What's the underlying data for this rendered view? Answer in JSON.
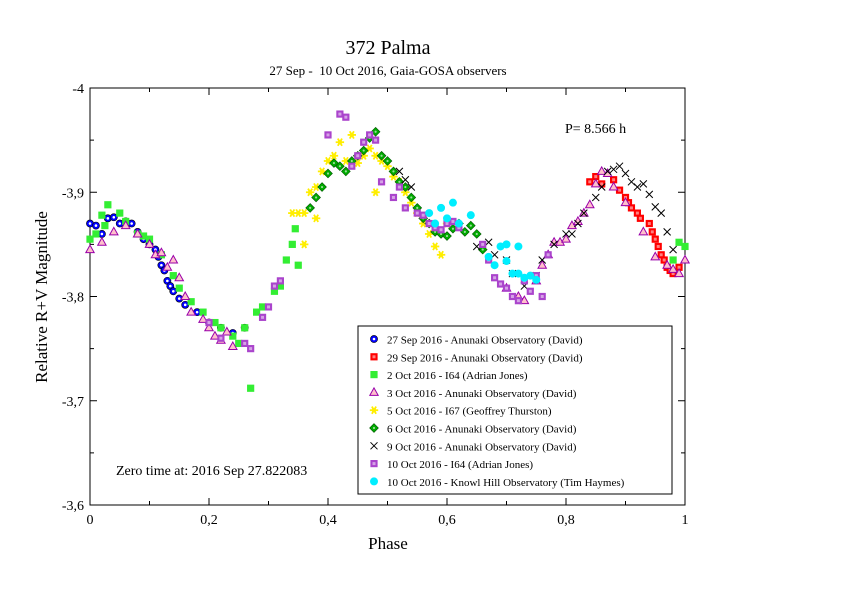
{
  "chart_data": {
    "type": "scatter",
    "title": "372 Palma",
    "subtitle": "27 Sep -  10 Oct 2016, Gaia-GOSA observers",
    "xlabel": "Phase",
    "ylabel": "Relative R+V Magnitude",
    "xlim": [
      0,
      1
    ],
    "ylim": [
      -3.6,
      -4.0
    ],
    "y_inverted": true,
    "x_ticks": [
      0,
      0.2,
      0.4,
      0.6,
      0.8,
      1
    ],
    "x_tick_labels": [
      "0",
      "0,2",
      "0,4",
      "0,6",
      "0,8",
      "1"
    ],
    "y_ticks": [
      -4.0,
      -3.9,
      -3.8,
      -3.7,
      -3.6
    ],
    "y_tick_labels": [
      "-4",
      "-3,9",
      "-3,8",
      "-3,7",
      "-3,6"
    ],
    "grid": false,
    "legend_position": "bottom-right",
    "annotations": {
      "period": "P= 8.566 h",
      "zero_time": "Zero time at: 2016 Sep 27.822083"
    },
    "series": [
      {
        "name": "27 Sep 2016 - Anunaki Observatory (David)",
        "marker": "circle-dot",
        "color": "#0000ff",
        "points": [
          [
            0.0,
            -3.87
          ],
          [
            0.01,
            -3.868
          ],
          [
            0.02,
            -3.86
          ],
          [
            0.03,
            -3.875
          ],
          [
            0.04,
            -3.876
          ],
          [
            0.05,
            -3.87
          ],
          [
            0.06,
            -3.872
          ],
          [
            0.07,
            -3.87
          ],
          [
            0.08,
            -3.862
          ],
          [
            0.09,
            -3.855
          ],
          [
            0.1,
            -3.85
          ],
          [
            0.11,
            -3.845
          ],
          [
            0.115,
            -3.838
          ],
          [
            0.12,
            -3.83
          ],
          [
            0.125,
            -3.825
          ],
          [
            0.13,
            -3.815
          ],
          [
            0.135,
            -3.81
          ],
          [
            0.14,
            -3.805
          ],
          [
            0.15,
            -3.798
          ],
          [
            0.16,
            -3.792
          ],
          [
            0.18,
            -3.785
          ],
          [
            0.2,
            -3.775
          ],
          [
            0.22,
            -3.77
          ],
          [
            0.24,
            -3.765
          ],
          [
            0.26,
            -3.77
          ]
        ]
      },
      {
        "name": "29 Sep 2016 - Anunaki Observatory (David)",
        "marker": "square-dot",
        "color": "#ff0000",
        "points": [
          [
            0.84,
            -3.91
          ],
          [
            0.85,
            -3.915
          ],
          [
            0.86,
            -3.908
          ],
          [
            0.88,
            -3.912
          ],
          [
            0.89,
            -3.902
          ],
          [
            0.9,
            -3.895
          ],
          [
            0.905,
            -3.89
          ],
          [
            0.91,
            -3.885
          ],
          [
            0.92,
            -3.88
          ],
          [
            0.925,
            -3.875
          ],
          [
            0.94,
            -3.87
          ],
          [
            0.945,
            -3.862
          ],
          [
            0.95,
            -3.855
          ],
          [
            0.955,
            -3.848
          ],
          [
            0.96,
            -3.84
          ],
          [
            0.965,
            -3.835
          ],
          [
            0.97,
            -3.828
          ],
          [
            0.975,
            -3.825
          ],
          [
            0.98,
            -3.822
          ],
          [
            0.99,
            -3.828
          ]
        ]
      },
      {
        "name": "2 Oct 2016 - I64 (Adrian Jones)",
        "marker": "square",
        "color": "#33ee33",
        "points": [
          [
            0.0,
            -3.855
          ],
          [
            0.01,
            -3.86
          ],
          [
            0.02,
            -3.878
          ],
          [
            0.025,
            -3.868
          ],
          [
            0.03,
            -3.888
          ],
          [
            0.05,
            -3.88
          ],
          [
            0.06,
            -3.872
          ],
          [
            0.08,
            -3.86
          ],
          [
            0.09,
            -3.858
          ],
          [
            0.1,
            -3.855
          ],
          [
            0.12,
            -3.84
          ],
          [
            0.14,
            -3.82
          ],
          [
            0.15,
            -3.808
          ],
          [
            0.17,
            -3.795
          ],
          [
            0.19,
            -3.785
          ],
          [
            0.21,
            -3.775
          ],
          [
            0.22,
            -3.77
          ],
          [
            0.24,
            -3.762
          ],
          [
            0.25,
            -3.755
          ],
          [
            0.26,
            -3.77
          ],
          [
            0.27,
            -3.712
          ],
          [
            0.28,
            -3.785
          ],
          [
            0.29,
            -3.79
          ],
          [
            0.31,
            -3.805
          ],
          [
            0.32,
            -3.81
          ],
          [
            0.33,
            -3.835
          ],
          [
            0.34,
            -3.85
          ],
          [
            0.345,
            -3.865
          ],
          [
            0.35,
            -3.83
          ],
          [
            0.98,
            -3.835
          ],
          [
            0.99,
            -3.852
          ],
          [
            1.0,
            -3.848
          ]
        ]
      },
      {
        "name": "3 Oct 2016 - Anunaki Observatory (David)",
        "marker": "triangle",
        "color": "#9900aa",
        "points": [
          [
            0.0,
            -3.845
          ],
          [
            0.02,
            -3.852
          ],
          [
            0.04,
            -3.862
          ],
          [
            0.06,
            -3.868
          ],
          [
            0.08,
            -3.86
          ],
          [
            0.1,
            -3.85
          ],
          [
            0.11,
            -3.84
          ],
          [
            0.12,
            -3.842
          ],
          [
            0.13,
            -3.828
          ],
          [
            0.14,
            -3.835
          ],
          [
            0.15,
            -3.818
          ],
          [
            0.16,
            -3.8
          ],
          [
            0.17,
            -3.785
          ],
          [
            0.19,
            -3.778
          ],
          [
            0.2,
            -3.77
          ],
          [
            0.21,
            -3.762
          ],
          [
            0.22,
            -3.758
          ],
          [
            0.23,
            -3.766
          ],
          [
            0.24,
            -3.752
          ],
          [
            0.7,
            -3.808
          ],
          [
            0.72,
            -3.8
          ],
          [
            0.73,
            -3.796
          ],
          [
            0.75,
            -3.815
          ],
          [
            0.76,
            -3.83
          ],
          [
            0.77,
            -3.84
          ],
          [
            0.78,
            -3.852
          ],
          [
            0.79,
            -3.852
          ],
          [
            0.8,
            -3.855
          ],
          [
            0.81,
            -3.868
          ],
          [
            0.82,
            -3.872
          ],
          [
            0.83,
            -3.88
          ],
          [
            0.84,
            -3.888
          ],
          [
            0.85,
            -3.908
          ],
          [
            0.86,
            -3.92
          ],
          [
            0.87,
            -3.918
          ],
          [
            0.88,
            -3.905
          ],
          [
            0.9,
            -3.89
          ],
          [
            0.93,
            -3.862
          ],
          [
            0.95,
            -3.838
          ],
          [
            0.97,
            -3.83
          ],
          [
            0.98,
            -3.826
          ],
          [
            0.99,
            -3.822
          ],
          [
            1.0,
            -3.835
          ]
        ]
      },
      {
        "name": "5 Oct 2016 - I67 (Geoffrey Thurston)",
        "marker": "star",
        "color": "#ffee00",
        "points": [
          [
            0.34,
            -3.88
          ],
          [
            0.35,
            -3.88
          ],
          [
            0.36,
            -3.88
          ],
          [
            0.37,
            -3.9
          ],
          [
            0.38,
            -3.905
          ],
          [
            0.39,
            -3.92
          ],
          [
            0.4,
            -3.93
          ],
          [
            0.41,
            -3.935
          ],
          [
            0.42,
            -3.948
          ],
          [
            0.43,
            -3.93
          ],
          [
            0.44,
            -3.955
          ],
          [
            0.45,
            -3.928
          ],
          [
            0.46,
            -3.935
          ],
          [
            0.47,
            -3.942
          ],
          [
            0.48,
            -3.935
          ],
          [
            0.49,
            -3.93
          ],
          [
            0.5,
            -3.925
          ],
          [
            0.51,
            -3.915
          ],
          [
            0.52,
            -3.91
          ],
          [
            0.53,
            -3.9
          ],
          [
            0.54,
            -3.89
          ],
          [
            0.55,
            -3.88
          ],
          [
            0.56,
            -3.87
          ],
          [
            0.57,
            -3.86
          ],
          [
            0.58,
            -3.848
          ],
          [
            0.59,
            -3.84
          ],
          [
            0.6,
            -3.87
          ],
          [
            0.36,
            -3.85
          ],
          [
            0.38,
            -3.875
          ],
          [
            0.48,
            -3.9
          ]
        ]
      },
      {
        "name": "6 Oct 2016 - Anunaki Observatory (David)",
        "marker": "diamond-dot",
        "color": "#00aa00",
        "points": [
          [
            0.37,
            -3.885
          ],
          [
            0.38,
            -3.895
          ],
          [
            0.39,
            -3.905
          ],
          [
            0.4,
            -3.918
          ],
          [
            0.41,
            -3.928
          ],
          [
            0.42,
            -3.925
          ],
          [
            0.43,
            -3.92
          ],
          [
            0.44,
            -3.93
          ],
          [
            0.45,
            -3.935
          ],
          [
            0.46,
            -3.94
          ],
          [
            0.47,
            -3.952
          ],
          [
            0.48,
            -3.958
          ],
          [
            0.49,
            -3.935
          ],
          [
            0.5,
            -3.93
          ],
          [
            0.51,
            -3.92
          ],
          [
            0.52,
            -3.91
          ],
          [
            0.53,
            -3.905
          ],
          [
            0.54,
            -3.895
          ],
          [
            0.55,
            -3.885
          ],
          [
            0.56,
            -3.875
          ],
          [
            0.57,
            -3.87
          ],
          [
            0.58,
            -3.862
          ],
          [
            0.59,
            -3.86
          ],
          [
            0.6,
            -3.858
          ],
          [
            0.61,
            -3.865
          ],
          [
            0.62,
            -3.87
          ],
          [
            0.63,
            -3.862
          ],
          [
            0.64,
            -3.868
          ],
          [
            0.65,
            -3.86
          ],
          [
            0.66,
            -3.845
          ]
        ]
      },
      {
        "name": "9 Oct 2016 - Anunaki Observatory (David)",
        "marker": "cross",
        "color": "#000000",
        "points": [
          [
            0.52,
            -3.92
          ],
          [
            0.53,
            -3.912
          ],
          [
            0.54,
            -3.905
          ],
          [
            0.65,
            -3.848
          ],
          [
            0.67,
            -3.852
          ],
          [
            0.68,
            -3.84
          ],
          [
            0.7,
            -3.835
          ],
          [
            0.71,
            -3.822
          ],
          [
            0.73,
            -3.81
          ],
          [
            0.75,
            -3.82
          ],
          [
            0.76,
            -3.835
          ],
          [
            0.78,
            -3.85
          ],
          [
            0.8,
            -3.86
          ],
          [
            0.81,
            -3.86
          ],
          [
            0.82,
            -3.87
          ],
          [
            0.83,
            -3.88
          ],
          [
            0.85,
            -3.895
          ],
          [
            0.86,
            -3.905
          ],
          [
            0.87,
            -3.92
          ],
          [
            0.88,
            -3.922
          ],
          [
            0.89,
            -3.925
          ],
          [
            0.9,
            -3.918
          ],
          [
            0.91,
            -3.91
          ],
          [
            0.92,
            -3.905
          ],
          [
            0.93,
            -3.908
          ],
          [
            0.94,
            -3.898
          ],
          [
            0.95,
            -3.886
          ],
          [
            0.96,
            -3.88
          ],
          [
            0.97,
            -3.862
          ],
          [
            0.98,
            -3.845
          ]
        ]
      },
      {
        "name": "10 Oct 2016 - I64 (Adrian Jones)",
        "marker": "square-dot",
        "color": "#aa44cc",
        "points": [
          [
            0.2,
            -3.775
          ],
          [
            0.22,
            -3.76
          ],
          [
            0.26,
            -3.755
          ],
          [
            0.27,
            -3.75
          ],
          [
            0.29,
            -3.78
          ],
          [
            0.3,
            -3.79
          ],
          [
            0.31,
            -3.81
          ],
          [
            0.32,
            -3.815
          ],
          [
            0.4,
            -3.955
          ],
          [
            0.42,
            -3.975
          ],
          [
            0.43,
            -3.972
          ],
          [
            0.44,
            -3.925
          ],
          [
            0.45,
            -3.935
          ],
          [
            0.46,
            -3.948
          ],
          [
            0.47,
            -3.955
          ],
          [
            0.48,
            -3.95
          ],
          [
            0.49,
            -3.91
          ],
          [
            0.51,
            -3.895
          ],
          [
            0.52,
            -3.905
          ],
          [
            0.53,
            -3.885
          ],
          [
            0.55,
            -3.88
          ],
          [
            0.56,
            -3.878
          ],
          [
            0.57,
            -3.87
          ],
          [
            0.58,
            -3.866
          ],
          [
            0.59,
            -3.864
          ],
          [
            0.6,
            -3.87
          ],
          [
            0.61,
            -3.872
          ],
          [
            0.62,
            -3.866
          ],
          [
            0.66,
            -3.85
          ],
          [
            0.67,
            -3.835
          ],
          [
            0.68,
            -3.818
          ],
          [
            0.69,
            -3.812
          ],
          [
            0.7,
            -3.808
          ],
          [
            0.71,
            -3.8
          ],
          [
            0.72,
            -3.796
          ],
          [
            0.73,
            -3.815
          ],
          [
            0.74,
            -3.805
          ],
          [
            0.75,
            -3.82
          ],
          [
            0.76,
            -3.8
          ],
          [
            0.77,
            -3.84
          ]
        ]
      },
      {
        "name": "10 Oct 2016 - Knowl Hill Observatory (Tim Haymes)",
        "marker": "circle",
        "color": "#00eeff",
        "points": [
          [
            0.57,
            -3.88
          ],
          [
            0.58,
            -3.87
          ],
          [
            0.59,
            -3.885
          ],
          [
            0.6,
            -3.875
          ],
          [
            0.61,
            -3.89
          ],
          [
            0.62,
            -3.87
          ],
          [
            0.64,
            -3.878
          ],
          [
            0.67,
            -3.838
          ],
          [
            0.68,
            -3.83
          ],
          [
            0.69,
            -3.848
          ],
          [
            0.7,
            -3.85
          ],
          [
            0.71,
            -3.822
          ],
          [
            0.72,
            -3.822
          ],
          [
            0.73,
            -3.818
          ],
          [
            0.74,
            -3.82
          ],
          [
            0.75,
            -3.816
          ],
          [
            0.7,
            -3.834
          ],
          [
            0.72,
            -3.848
          ]
        ]
      }
    ]
  }
}
